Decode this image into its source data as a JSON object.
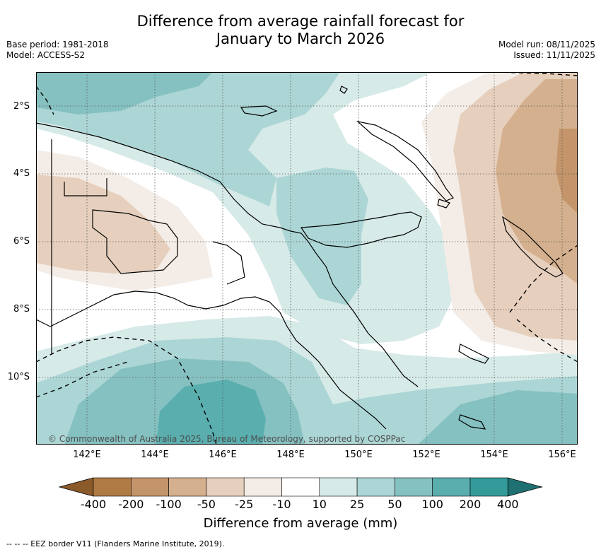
{
  "header": {
    "title_line1": "Difference from average rainfall forecast for",
    "title_line2": "January to March 2026",
    "base_period": "Base period: 1981-2018",
    "model": "Model: ACCESS-S2",
    "model_run": "Model run: 08/11/2025",
    "issued": "Issued: 11/11/2025"
  },
  "map": {
    "lat_labels": [
      "2°S",
      "4°S",
      "6°S",
      "8°S",
      "10°S"
    ],
    "lon_labels": [
      "142°E",
      "144°E",
      "146°E",
      "148°E",
      "150°E",
      "152°E",
      "154°E",
      "156°E"
    ],
    "credit": "© Commonwealth of Australia 2025, Bureau of Meteorology, supported by COSPPac"
  },
  "colorbar": {
    "ticks": [
      "-400",
      "-200",
      "-100",
      "-50",
      "-25",
      "-10",
      "10",
      "25",
      "50",
      "100",
      "200",
      "400"
    ],
    "colors": [
      "#8b5a2b",
      "#b07a45",
      "#c4956a",
      "#d4b08e",
      "#e6d0bd",
      "#f4ede7",
      "#ffffff",
      "#d6eae8",
      "#acd6d5",
      "#86c1c1",
      "#5aaeae",
      "#339a99",
      "#1f7070"
    ],
    "label": "Difference from average (mm)"
  },
  "footer": {
    "eez_note": "--  --  -- EEZ border V11 (Flanders Marine Institute, 2019)."
  }
}
